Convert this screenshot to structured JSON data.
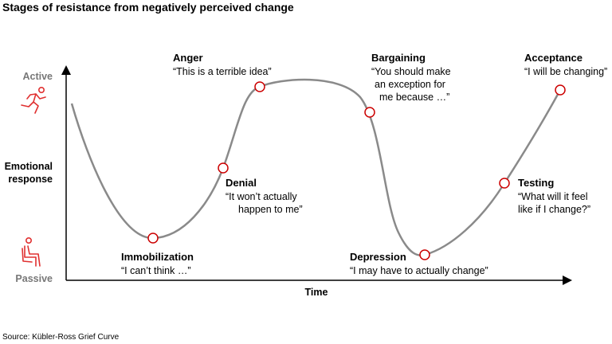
{
  "title": "Stages of resistance from negatively perceived change",
  "y_axis": {
    "label_lines": [
      "Emotional",
      "response"
    ],
    "top": "Active",
    "bottom": "Passive",
    "top_icon": "running-person-icon",
    "bottom_icon": "seated-person-icon"
  },
  "x_axis": {
    "label": "Time"
  },
  "colors": {
    "curve": "#8a8a8a",
    "marker": "#cc0000",
    "axis_end_labels": "#777777",
    "icon": "#e03030"
  },
  "stages": [
    {
      "name": "Immobilization",
      "quote_lines": [
        "“I can’t think …”"
      ]
    },
    {
      "name": "Denial",
      "quote_lines": [
        "“It won’t actually",
        "happen to me”"
      ]
    },
    {
      "name": "Anger",
      "quote_lines": [
        "“This is a terrible idea”"
      ]
    },
    {
      "name": "Bargaining",
      "quote_lines": [
        "“You should make",
        "an exception for",
        "me because …”"
      ]
    },
    {
      "name": "Depression",
      "quote_lines": [
        "“I may have to actually change”"
      ]
    },
    {
      "name": "Testing",
      "quote_lines": [
        "“What will it feel",
        "like if I change?”"
      ]
    },
    {
      "name": "Acceptance",
      "quote_lines": [
        "“I will be changing”"
      ]
    }
  ],
  "source": "Source: Kübler-Ross Grief Curve"
}
